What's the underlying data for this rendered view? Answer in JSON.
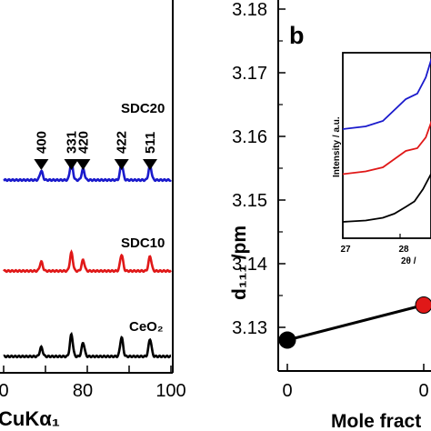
{
  "panel_a": {
    "x_axis_label": "CuKα₁",
    "x_tick_labels": [
      "0",
      "80",
      "100"
    ],
    "sample_labels": {
      "sdc20": "SDC20",
      "sdc10": "SDC10",
      "ceo2": "CeO₂"
    },
    "peak_labels": [
      "400",
      "331",
      "420",
      "422",
      "511"
    ]
  },
  "panel_b": {
    "panel_letter": "b",
    "y_axis_label": "d₁₁₁ /pm",
    "y_tick_labels": [
      "3.18",
      "3.17",
      "3.16",
      "3.15",
      "3.14",
      "3.13"
    ],
    "x_tick_labels": [
      "0",
      "0"
    ],
    "x_axis_label": "Mole fract",
    "inset": {
      "y_label": "Intensity / a.u.",
      "x_tick_labels": [
        "27",
        "28"
      ],
      "x_label": "2θ /"
    }
  },
  "chart_data": [
    {
      "type": "line",
      "xlabel": "CuKα₁",
      "xlim": [
        72,
        100
      ],
      "grid": false,
      "series": [
        {
          "name": "SDC20",
          "color": "#1a1acc",
          "peaks": [
            {
              "x": 69,
              "h": 10
            },
            {
              "x": 76.2,
              "h": 20
            },
            {
              "x": 79,
              "h": 12
            },
            {
              "x": 88.2,
              "h": 18
            },
            {
              "x": 95,
              "h": 16
            }
          ]
        },
        {
          "name": "SDC10",
          "color": "#e01818",
          "peaks": [
            {
              "x": 69,
              "h": 10
            },
            {
              "x": 76.2,
              "h": 20
            },
            {
              "x": 79,
              "h": 12
            },
            {
              "x": 88.2,
              "h": 18
            },
            {
              "x": 95,
              "h": 16
            }
          ]
        },
        {
          "name": "CeO₂",
          "color": "#000000",
          "peaks": [
            {
              "x": 69,
              "h": 10
            },
            {
              "x": 76.2,
              "h": 24
            },
            {
              "x": 79,
              "h": 15
            },
            {
              "x": 88.2,
              "h": 21
            },
            {
              "x": 95,
              "h": 19
            }
          ]
        }
      ],
      "annotations": [
        {
          "label": "400",
          "x": 69
        },
        {
          "label": "331",
          "x": 76.2
        },
        {
          "label": "420",
          "x": 79
        },
        {
          "label": "422",
          "x": 88.2
        },
        {
          "label": "511",
          "x": 95
        }
      ]
    },
    {
      "type": "line",
      "ylabel": "d₁₁₁ /pm",
      "xlabel": "Mole fract",
      "ylim": [
        3.122,
        3.18
      ],
      "grid": false,
      "series": [
        {
          "color": "#000000",
          "marker_colors": [
            "#000000",
            "#e01818"
          ],
          "x": [
            0,
            0.1
          ],
          "y": [
            3.128,
            3.1335
          ]
        }
      ]
    },
    {
      "type": "line",
      "ylabel": "Intensity / a.u.",
      "xlabel": "2θ /",
      "xlim": [
        27,
        28.6
      ],
      "grid": false,
      "series": [
        {
          "name": "SDC20",
          "color": "#1a1acc",
          "x": [
            27.0,
            27.4,
            27.7,
            27.9,
            28.1,
            28.3,
            28.45,
            28.55
          ],
          "y": [
            0.8,
            0.82,
            0.86,
            0.94,
            1.02,
            1.06,
            1.18,
            1.32
          ]
        },
        {
          "name": "SDC10",
          "color": "#e01818",
          "x": [
            27.0,
            27.4,
            27.7,
            27.9,
            28.1,
            28.3,
            28.45,
            28.55
          ],
          "y": [
            0.47,
            0.49,
            0.52,
            0.58,
            0.64,
            0.66,
            0.74,
            0.86
          ]
        },
        {
          "name": "CeO₂",
          "color": "#000000",
          "x": [
            27.0,
            27.4,
            27.7,
            27.9,
            28.1,
            28.25,
            28.4,
            28.55
          ],
          "y": [
            0.12,
            0.13,
            0.15,
            0.18,
            0.23,
            0.27,
            0.36,
            0.48
          ]
        }
      ]
    }
  ]
}
